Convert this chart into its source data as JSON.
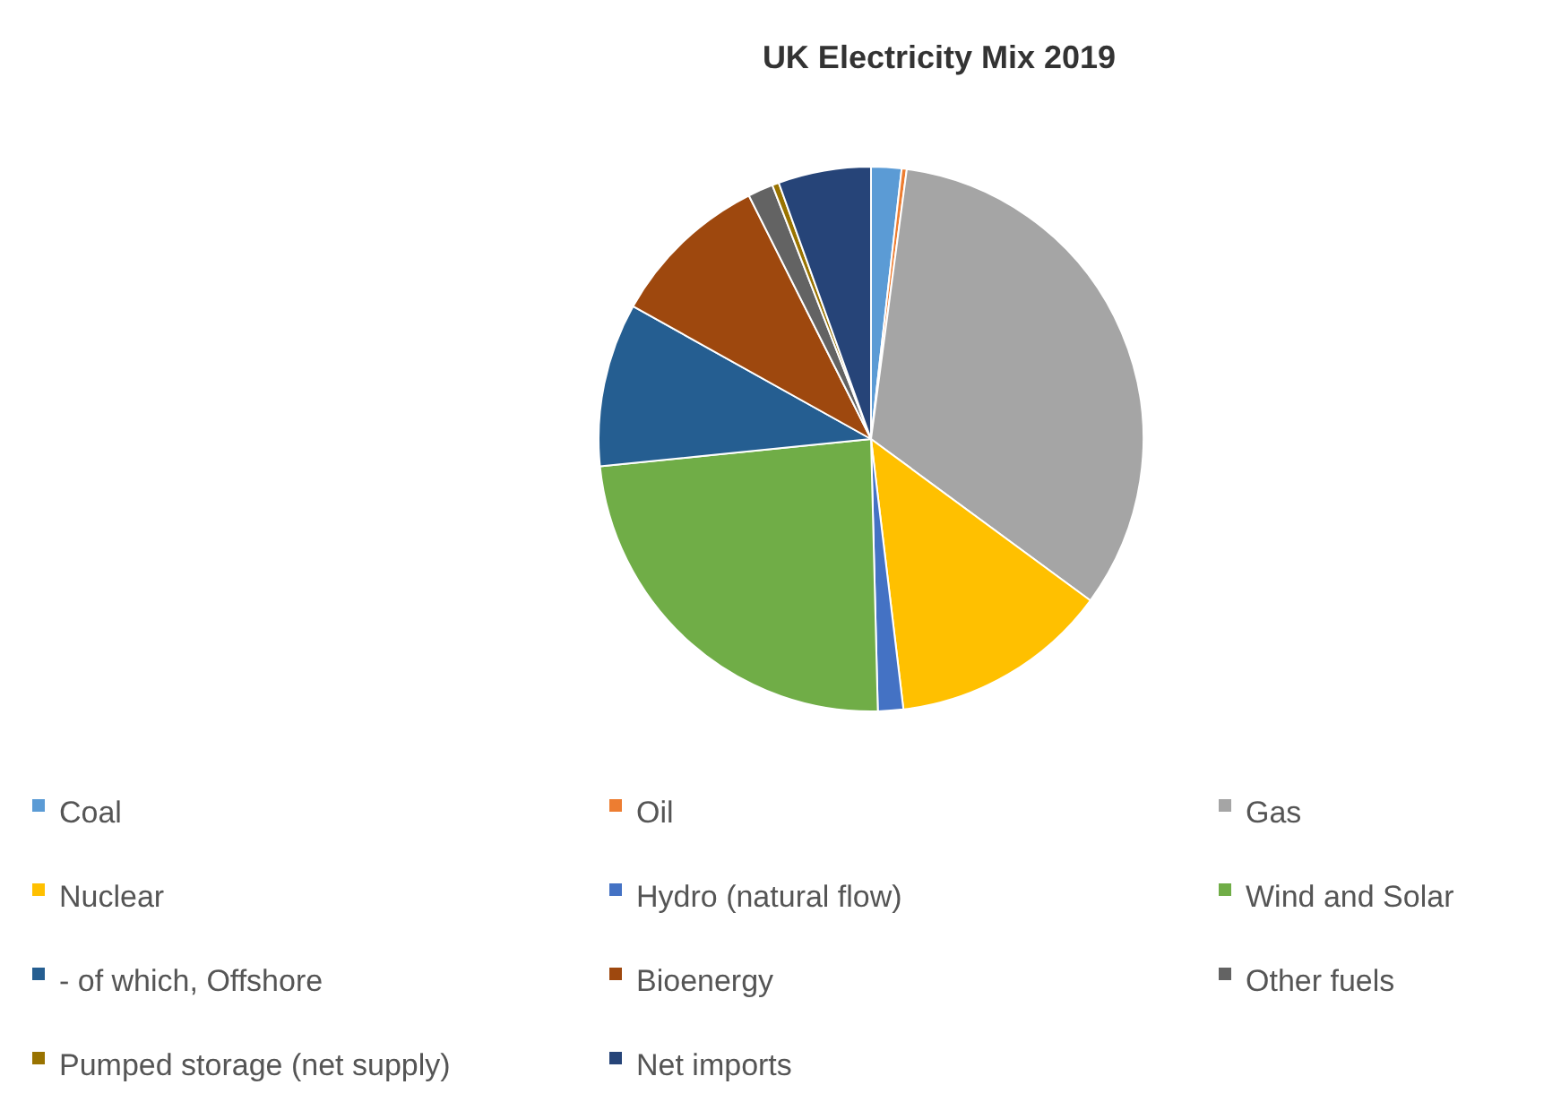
{
  "chart_data": {
    "type": "pie",
    "title": "UK Electricity Mix 2019",
    "categories": [
      "Coal",
      "Oil",
      "Gas",
      "Nuclear",
      "Hydro (natural flow)",
      "Wind and Solar",
      "- of which, Offshore",
      "Bioenergy",
      "Other fuels",
      "Pumped storage (net supply)",
      "Net imports"
    ],
    "values": [
      1.8,
      0.3,
      33,
      13,
      1.5,
      23.8,
      9.7,
      9.5,
      1.5,
      0.4,
      5.5
    ],
    "colors": [
      "#5b9bd5",
      "#ed7d31",
      "#a5a5a5",
      "#ffc000",
      "#4472c4",
      "#70ad47",
      "#255e91",
      "#9e480e",
      "#636363",
      "#997300",
      "#264478"
    ],
    "legend": "bottom"
  }
}
